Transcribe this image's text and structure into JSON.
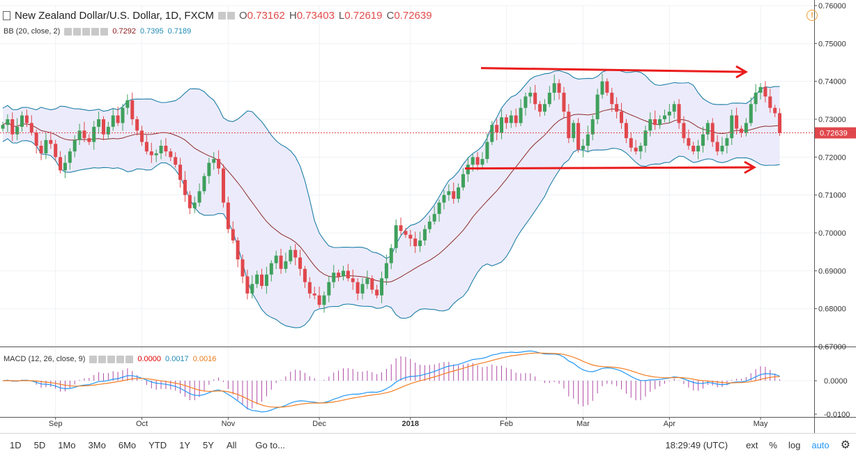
{
  "header": {
    "title": "New Zealand Dollar/U.S. Dollar, 1D, FXCM",
    "open_label": "O",
    "open": "0.73162",
    "high_label": "H",
    "high": "0.73403",
    "low_label": "L",
    "low": "0.72619",
    "close_label": "C",
    "close": "0.72639"
  },
  "bb": {
    "name": "BB (20, close, 2)",
    "mid": "0.7292",
    "upper": "0.7395",
    "lower": "0.7189"
  },
  "macd": {
    "name": "MACD (12, 26, close, 9)",
    "hist": "0.0000",
    "macd": "0.0017",
    "signal": "0.0016"
  },
  "timeframes": [
    "1D",
    "5D",
    "1Mo",
    "3Mo",
    "6Mo",
    "YTD",
    "1Y",
    "5Y",
    "All"
  ],
  "goto": "Go to...",
  "time": "18:29:49 (UTC)",
  "right_controls": [
    "ext",
    "%",
    "log",
    "auto"
  ],
  "price_tag": "0.72639",
  "colors": {
    "up": "#3fa05c",
    "down": "#e0474c",
    "bb_band": "#1e7fa6",
    "bb_fill": "#ecebfb",
    "basis": "#8b2a2a",
    "macd": "#2196f3",
    "signal": "#f57c1f",
    "arrow": "#ea1c1c"
  },
  "chart_data": [
    {
      "type": "candlestick",
      "title": "New Zealand Dollar/U.S. Dollar, 1D, FXCM",
      "ylim": [
        0.67,
        0.76
      ],
      "y_ticks": [
        "0.76000",
        "0.75000",
        "0.74000",
        "0.73000",
        "0.72000",
        "0.71000",
        "0.70000",
        "0.69000",
        "0.68000",
        "0.67000"
      ],
      "x_ticks": [
        "Sep",
        "Oct",
        "Nov",
        "Dec",
        "2018",
        "Feb",
        "Mar",
        "Apr",
        "May"
      ],
      "closes": [
        0.7285,
        0.73,
        0.726,
        0.728,
        0.731,
        0.729,
        0.7265,
        0.723,
        0.721,
        0.7245,
        0.7235,
        0.72,
        0.7165,
        0.7185,
        0.7215,
        0.7245,
        0.727,
        0.725,
        0.724,
        0.728,
        0.73,
        0.726,
        0.728,
        0.731,
        0.729,
        0.733,
        0.735,
        0.73,
        0.727,
        0.724,
        0.7215,
        0.7205,
        0.721,
        0.723,
        0.7215,
        0.72,
        0.718,
        0.714,
        0.71,
        0.7065,
        0.708,
        0.711,
        0.715,
        0.7185,
        0.7195,
        0.717,
        0.708,
        0.701,
        0.698,
        0.693,
        0.6885,
        0.684,
        0.6865,
        0.689,
        0.686,
        0.689,
        0.692,
        0.694,
        0.6905,
        0.6925,
        0.6955,
        0.6935,
        0.6905,
        0.687,
        0.684,
        0.6835,
        0.681,
        0.6835,
        0.687,
        0.6895,
        0.6885,
        0.69,
        0.688,
        0.687,
        0.684,
        0.6865,
        0.688,
        0.685,
        0.6835,
        0.688,
        0.692,
        0.696,
        0.702,
        0.7005,
        0.6995,
        0.6985,
        0.6965,
        0.698,
        0.701,
        0.703,
        0.705,
        0.708,
        0.71,
        0.711,
        0.709,
        0.712,
        0.7155,
        0.718,
        0.72,
        0.718,
        0.7195,
        0.724,
        0.7285,
        0.7265,
        0.7305,
        0.729,
        0.731,
        0.729,
        0.733,
        0.736,
        0.737,
        0.734,
        0.732,
        0.734,
        0.737,
        0.7395,
        0.737,
        0.732,
        0.725,
        0.729,
        0.722,
        0.723,
        0.726,
        0.73,
        0.7365,
        0.74,
        0.737,
        0.734,
        0.732,
        0.729,
        0.725,
        0.7225,
        0.7215,
        0.723,
        0.727,
        0.73,
        0.7285,
        0.73,
        0.731,
        0.732,
        0.734,
        0.729,
        0.725,
        0.723,
        0.7215,
        0.723,
        0.726,
        0.729,
        0.724,
        0.7215,
        0.723,
        0.725,
        0.731,
        0.7275,
        0.7265,
        0.729,
        0.734,
        0.737,
        0.7385,
        0.736,
        0.733,
        0.7316,
        0.7264
      ]
    },
    {
      "type": "line",
      "title": "MACD (12, 26, close, 9)",
      "ylim": [
        -0.012,
        0.012
      ],
      "y_ticks": [
        "0.0000",
        "-0.0100"
      ],
      "series": [
        {
          "name": "MACD"
        },
        {
          "name": "Signal"
        },
        {
          "name": "Histogram"
        }
      ]
    }
  ],
  "annotations": {
    "upper_trendline": [
      [
        0.7435,
        0.7425
      ]
    ],
    "lower_trendline": [
      [
        0.717,
        0.7173
      ]
    ]
  }
}
